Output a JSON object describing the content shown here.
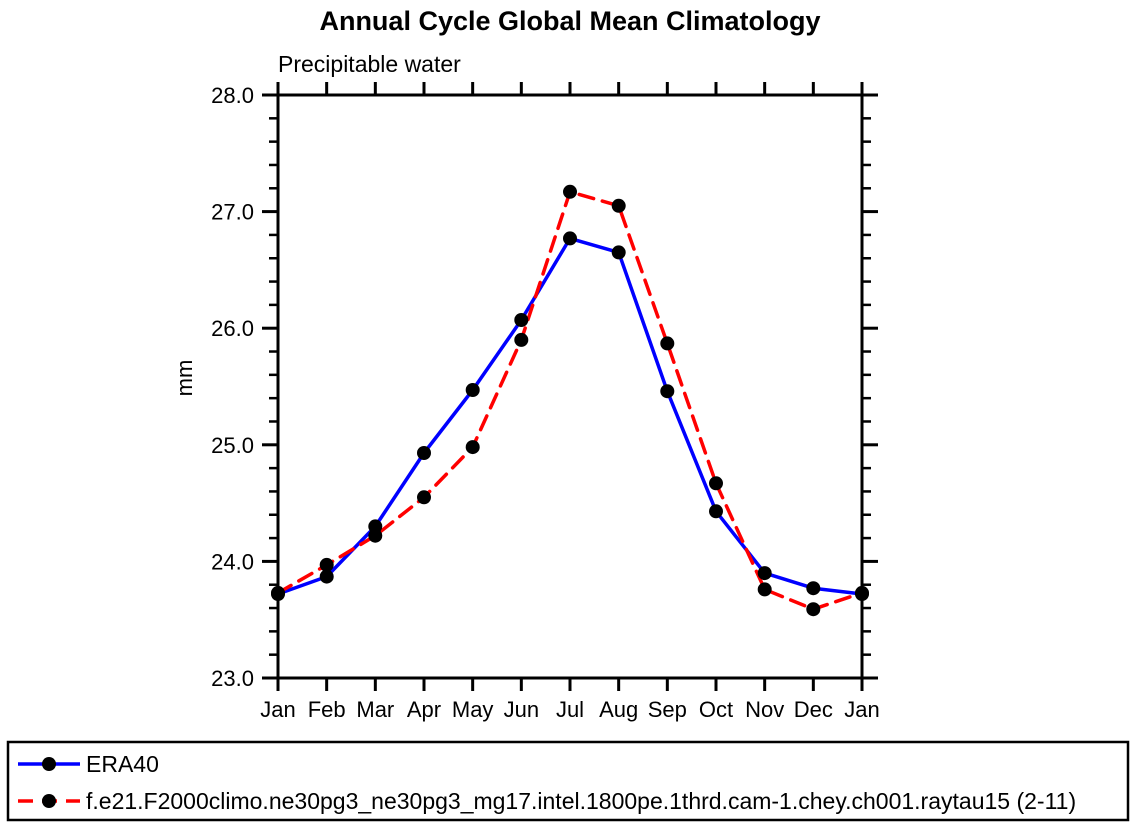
{
  "title": "Annual Cycle Global Mean Climatology",
  "subtitle": "Precipitable water",
  "colors": {
    "axis": "#000000",
    "marker": "#000000",
    "era40_line": "#0000ff",
    "model_line": "#ff0000",
    "background": "#ffffff"
  },
  "chart_data": {
    "type": "line",
    "title": "Annual Cycle Global Mean Climatology",
    "subtitle": "Precipitable water",
    "xlabel": "",
    "ylabel": "mm",
    "categories": [
      "Jan",
      "Feb",
      "Mar",
      "Apr",
      "May",
      "Jun",
      "Jul",
      "Aug",
      "Sep",
      "Oct",
      "Nov",
      "Dec",
      "Jan"
    ],
    "ylim": [
      23.0,
      28.0
    ],
    "ytick_labels": [
      "23.0",
      "24.0",
      "25.0",
      "26.0",
      "27.0",
      "28.0"
    ],
    "yticks": [
      23.0,
      24.0,
      25.0,
      26.0,
      27.0,
      28.0
    ],
    "yminor_step": 0.2,
    "grid": false,
    "marker": "filled-circle",
    "marker_color": "#000000",
    "legend_position": "bottom",
    "series": [
      {
        "name": "ERA40",
        "color": "#0000ff",
        "style": "solid",
        "values": [
          23.72,
          23.87,
          24.3,
          24.93,
          25.47,
          26.07,
          26.77,
          26.65,
          25.46,
          24.43,
          23.9,
          23.77,
          23.72
        ]
      },
      {
        "name": "f.e21.F2000climo.ne30pg3_ne30pg3_mg17.intel.1800pe.1thrd.cam-1.chey.ch001.raytau15 (2-11)",
        "color": "#ff0000",
        "style": "dashed",
        "values": [
          23.73,
          23.97,
          24.22,
          24.55,
          24.98,
          25.9,
          27.17,
          27.05,
          25.87,
          24.67,
          23.76,
          23.59,
          23.73
        ]
      }
    ]
  }
}
